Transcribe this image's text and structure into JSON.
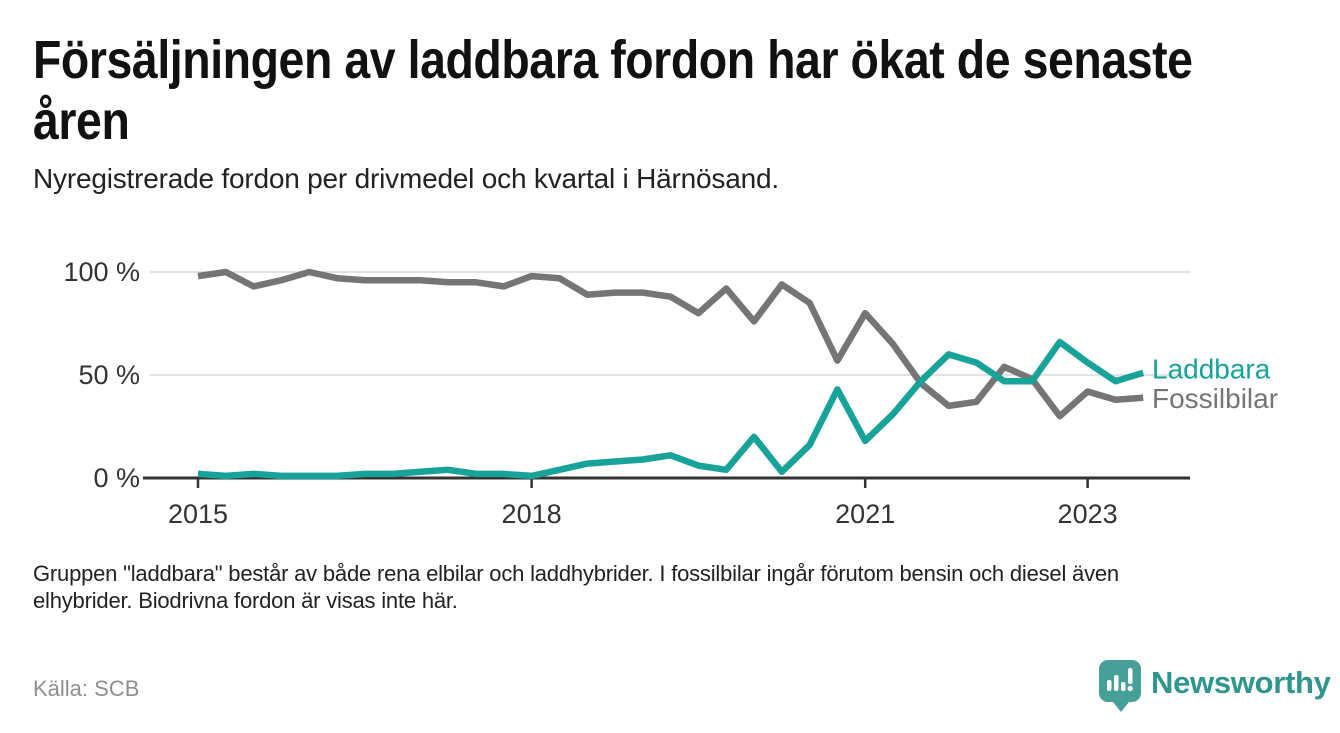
{
  "header": {
    "title_lines": [
      "Försäljningen av laddbara fordon har ökat de senaste",
      "åren"
    ],
    "subtitle": "Nyregistrerade fordon per drivmedel och kvartal i Härnösand."
  },
  "notes": {
    "lines": [
      "Gruppen \"laddbara\" består av både rena elbilar och laddhybrider. I fossilbilar ingår förutom bensin och diesel även",
      "elhybrider. Biodrivna fordon är visas inte här."
    ]
  },
  "source": "Källa: SCB",
  "brand": {
    "name": "Newsworthy",
    "icon": "newsworthy-pin-icon"
  },
  "colors": {
    "laddbara": "#17a399",
    "fossilbilar": "#757575",
    "grid": "#d9d9d9",
    "axis": "#333333",
    "tick_text": "#333333",
    "title": "#111111",
    "body_text": "#222222",
    "muted_text": "#8f8f8f",
    "brand_icon": "#46a099",
    "brand_text": "#2e968e",
    "background": "#ffffff"
  },
  "chart_data": {
    "type": "line",
    "title": "Nyregistrerade fordon per drivmedel och kvartal i Härnösand",
    "unit": "%",
    "x_unit": "quarter",
    "ylim": [
      0,
      100
    ],
    "grid": "horizontal",
    "legend": "labels-at-line-ends",
    "quarters": [
      "2015 Q1",
      "2015 Q2",
      "2015 Q3",
      "2015 Q4",
      "2016 Q1",
      "2016 Q2",
      "2016 Q3",
      "2016 Q4",
      "2017 Q1",
      "2017 Q2",
      "2017 Q3",
      "2017 Q4",
      "2018 Q1",
      "2018 Q2",
      "2018 Q3",
      "2018 Q4",
      "2019 Q1",
      "2019 Q2",
      "2019 Q3",
      "2019 Q4",
      "2020 Q1",
      "2020 Q2",
      "2020 Q3",
      "2020 Q4",
      "2021 Q1",
      "2021 Q2",
      "2021 Q3",
      "2021 Q4",
      "2022 Q1",
      "2022 Q2",
      "2022 Q3",
      "2022 Q4",
      "2023 Q1",
      "2023 Q2",
      "2023 Q3"
    ],
    "series": [
      {
        "name": "Laddbara",
        "color": "#17a399",
        "values": [
          2,
          1,
          2,
          1,
          1,
          1,
          2,
          2,
          3,
          4,
          2,
          2,
          1,
          4,
          7,
          8,
          9,
          11,
          6,
          4,
          20,
          3,
          16,
          43,
          18,
          31,
          47,
          60,
          56,
          47,
          47,
          66,
          56,
          47,
          51
        ]
      },
      {
        "name": "Fossilbilar",
        "color": "#757575",
        "values": [
          98,
          100,
          93,
          96,
          100,
          97,
          96,
          96,
          96,
          95,
          95,
          93,
          98,
          97,
          89,
          90,
          90,
          88,
          80,
          92,
          76,
          94,
          85,
          57,
          80,
          65,
          46,
          35,
          37,
          54,
          48,
          30,
          42,
          38,
          39
        ]
      }
    ],
    "yticks": [
      {
        "label": "100 %",
        "value": 100
      },
      {
        "label": "50 %",
        "value": 50
      },
      {
        "label": "0 %",
        "value": 0
      }
    ],
    "xticks": [
      {
        "label": "2015",
        "quarter_index": 0
      },
      {
        "label": "2018",
        "quarter_index": 12
      },
      {
        "label": "2021",
        "quarter_index": 24
      },
      {
        "label": "2023",
        "quarter_index": 32
      }
    ]
  }
}
